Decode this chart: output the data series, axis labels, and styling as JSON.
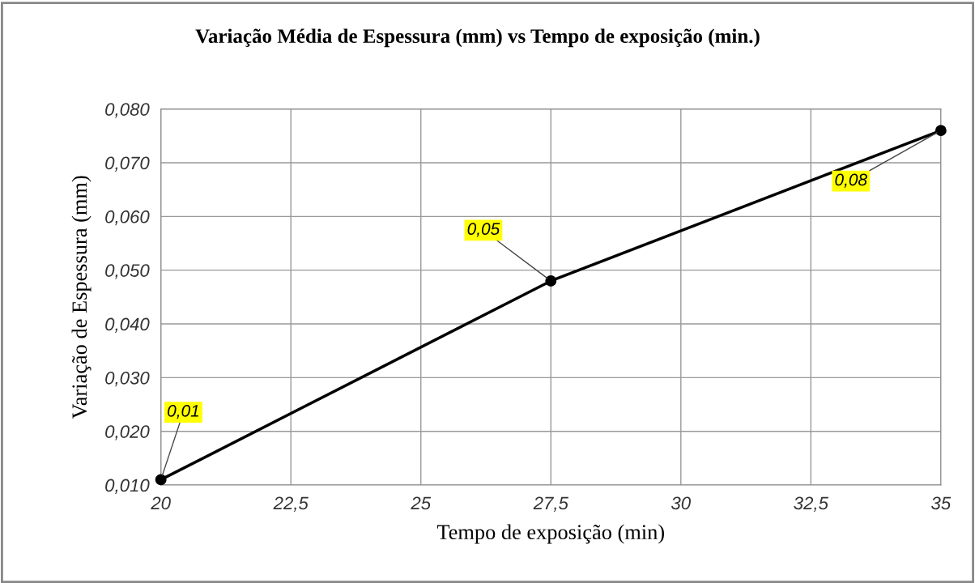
{
  "chart_data": {
    "type": "line",
    "title": "Variação Média de Espessura (mm) vs Tempo de exposição (min.)",
    "xlabel": "Tempo de exposição (min)",
    "ylabel": "Variação de Espessura (mm)",
    "x": [
      20,
      27.5,
      35
    ],
    "series": [
      {
        "color": "#000000",
        "values": [
          0.011,
          0.048,
          0.076
        ],
        "value_labels": [
          "0,01",
          "0,05",
          "0,08"
        ]
      }
    ],
    "xlim": [
      20,
      35
    ],
    "xticks": [
      20,
      {
        "value": 22.5,
        "label": "22,5"
      },
      25,
      {
        "value": 27.5,
        "label": "27,5"
      },
      30,
      {
        "value": 32.5,
        "label": "32,5"
      },
      35
    ],
    "ylim": [
      0.01,
      0.08
    ],
    "yticks": [
      {
        "value": 0.01,
        "label": "0,010"
      },
      {
        "value": 0.02,
        "label": "0,020"
      },
      {
        "value": 0.03,
        "label": "0,030"
      },
      {
        "value": 0.04,
        "label": "0,040"
      },
      {
        "value": 0.05,
        "label": "0,050"
      },
      {
        "value": 0.06,
        "label": "0,060"
      },
      {
        "value": 0.07,
        "label": "0,070"
      },
      {
        "value": 0.08,
        "label": "0,080"
      }
    ],
    "grid": true,
    "marker": "circle",
    "line_style": "solid"
  }
}
